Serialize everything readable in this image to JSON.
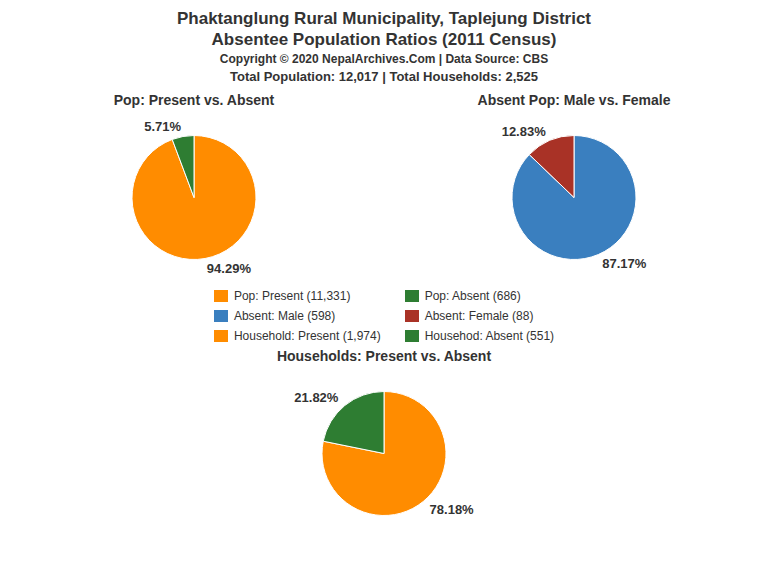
{
  "title": "Phaktanglung Rural Municipality, Taplejung District",
  "subtitle": "Absentee Population Ratios (2011 Census)",
  "annotations": [
    "Copyright © 2020 NepalArchives.Com | Data Source: CBS",
    "Total Population: 12,017 | Total Households: 2,525"
  ],
  "legend": "center",
  "chart_data": [
    {
      "type": "pie",
      "title": "Pop: Present vs. Absent",
      "categories": [
        "Pop: Present (11,331)",
        "Pop: Absent (686)"
      ],
      "values": [
        94.29,
        5.71
      ],
      "value_labels": [
        "94.29%",
        "5.71%"
      ],
      "colors": [
        "#FF8C00",
        "#2E7D32"
      ],
      "data_labels": true
    },
    {
      "type": "pie",
      "title": "Absent Pop: Male vs. Female",
      "categories": [
        "Absent: Male (598)",
        "Absent: Female (88)"
      ],
      "values": [
        87.17,
        12.83
      ],
      "value_labels": [
        "87.17%",
        "12.83%"
      ],
      "colors": [
        "#3A7FBF",
        "#A93226"
      ],
      "data_labels": true
    },
    {
      "type": "pie",
      "title": "Households: Present vs. Absent",
      "categories": [
        "Household: Present (1,974)",
        "Househod: Absent (551)"
      ],
      "values": [
        78.18,
        21.82
      ],
      "value_labels": [
        "78.18%",
        "21.82%"
      ],
      "colors": [
        "#FF8C00",
        "#2E7D32"
      ],
      "data_labels": true
    }
  ]
}
